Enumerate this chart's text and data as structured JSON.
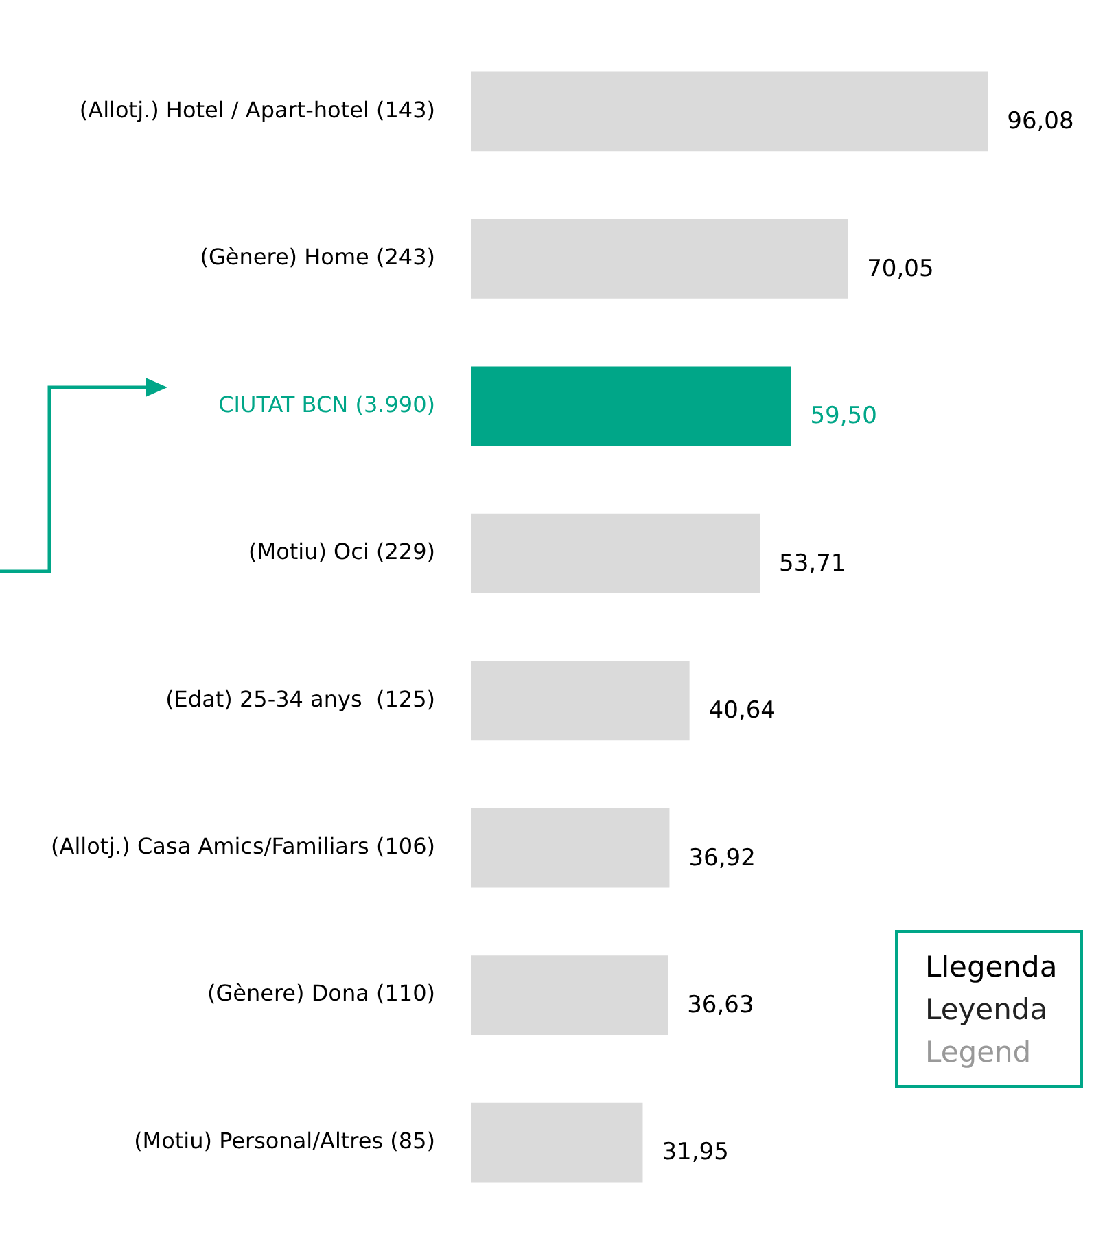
{
  "chart_data": {
    "type": "bar",
    "orientation": "horizontal",
    "categories": [
      "(Allotj.) Hotel / Apart-hotel (143)",
      "(Gènere) Home (243)",
      "CIUTAT BCN (3.990)",
      "(Motiu) Oci (229)",
      "(Edat) 25-34 anys  (125)",
      "(Allotj.) Casa Amics/Familiars (106)",
      "(Gènere) Dona (110)",
      "(Motiu) Personal/Altres (85)"
    ],
    "values": [
      96.08,
      70.05,
      59.5,
      53.71,
      40.64,
      36.92,
      36.63,
      31.95
    ],
    "value_labels": [
      "96,08",
      "70,05",
      "59,50",
      "53,71",
      "40,64",
      "36,92",
      "36,63",
      "31,95"
    ],
    "colors": [
      "#dadada",
      "#dadada",
      "#00a688",
      "#dadada",
      "#dadada",
      "#dadada",
      "#dadada",
      "#dadada"
    ],
    "annotations": [
      "Llegenda",
      "Leyenda",
      "Legend"
    ],
    "legend": false,
    "grid": false
  }
}
